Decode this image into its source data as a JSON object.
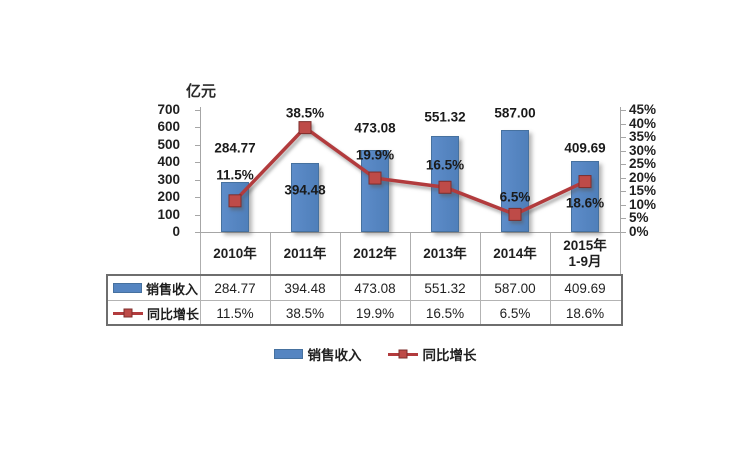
{
  "chart_data": {
    "type": "combo",
    "categories": [
      "2010年",
      "2011年",
      "2012年",
      "2013年",
      "2014年",
      "2015年\n1-9月"
    ],
    "series": [
      {
        "name": "销售收入",
        "type": "bar",
        "axis": "left",
        "values": [
          284.77,
          394.48,
          473.08,
          551.32,
          587.0,
          409.69
        ],
        "labels": [
          "284.77",
          "394.48",
          "473.08",
          "551.32",
          "587.00",
          "409.69"
        ],
        "color": "#5585c1"
      },
      {
        "name": "同比增长",
        "type": "line",
        "axis": "right",
        "values": [
          11.5,
          38.5,
          19.9,
          16.5,
          6.5,
          18.6
        ],
        "labels": [
          "11.5%",
          "38.5%",
          "19.9%",
          "16.5%",
          "6.5%",
          "18.6%"
        ],
        "color": "#b23b3d",
        "marker": "square",
        "marker_color": "#be4b48"
      }
    ],
    "left_axis": {
      "title": "亿元",
      "min": 0,
      "max": 700,
      "step": 100,
      "tick_labels": [
        "700",
        "600",
        "500",
        "400",
        "300",
        "200",
        "100",
        "0"
      ]
    },
    "right_axis": {
      "min": 0,
      "max": 45,
      "step": 5,
      "tick_labels": [
        "45%",
        "40%",
        "35%",
        "30%",
        "25%",
        "20%",
        "15%",
        "10%",
        "5%",
        "0%"
      ]
    },
    "grid": false,
    "legend_position": "bottom"
  },
  "data_table": {
    "column_headers": [
      "2010年",
      "2011年",
      "2012年",
      "2013年",
      "2014年",
      "2015年\n1-9月"
    ],
    "rows": [
      {
        "label": "销售收入",
        "swatch": "bar",
        "values": [
          "284.77",
          "394.48",
          "473.08",
          "551.32",
          "587.00",
          "409.69"
        ]
      },
      {
        "label": "同比增长",
        "swatch": "line-marker",
        "values": [
          "11.5%",
          "38.5%",
          "19.9%",
          "16.5%",
          "6.5%",
          "18.6%"
        ]
      }
    ]
  },
  "legend": {
    "items": [
      {
        "label": "销售收入",
        "swatch": "bar"
      },
      {
        "label": "同比增长",
        "swatch": "line-marker"
      }
    ]
  },
  "colors": {
    "bar": "#5585c1",
    "bar_border": "#46719f",
    "line": "#b23b3d",
    "marker": "#be4b48",
    "marker_border": "#7e2d2b",
    "axis": "#a6a6a6",
    "table_border_outer": "#6e6e6e",
    "table_border_inner": "#b3b3b3",
    "text": "#1f1f1f"
  }
}
